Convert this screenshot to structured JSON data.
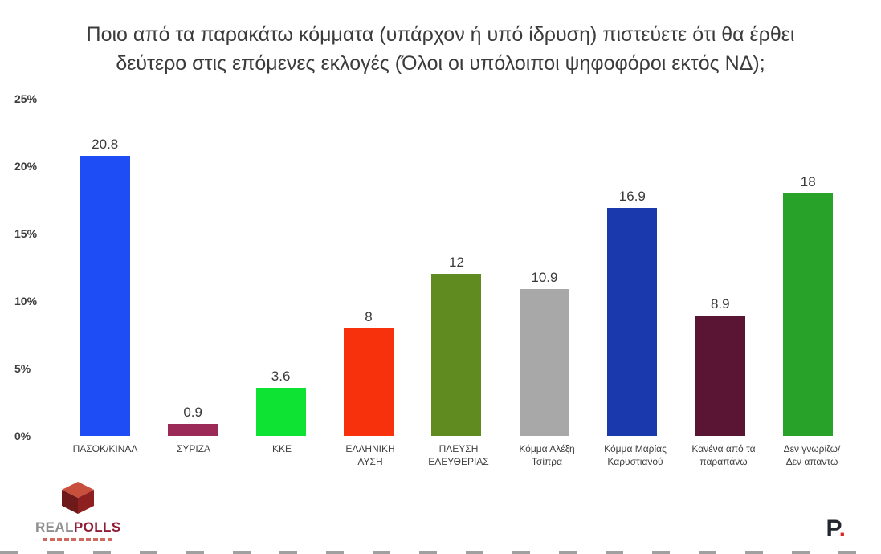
{
  "title": {
    "line1": "Ποιο από τα παρακάτω κόμματα (υπάρχον ή υπό ίδρυση) πιστεύετε ότι θα έρθει",
    "line2": "δεύτερο στις επόμενες εκλογές (Όλοι οι υπόλοιποι ψηφοφόροι εκτός ΝΔ);"
  },
  "chart_data": {
    "type": "bar",
    "title": "Ποιο από τα παρακάτω κόμματα (υπάρχον ή υπό ίδρυση) πιστεύετε ότι θα έρθει δεύτερο στις επόμενες εκλογές (Όλοι οι υπόλοιποι ψηφοφόροι εκτός ΝΔ);",
    "categories": [
      "ΠΑΣΟΚ/ΚΙΝΑΛ",
      "ΣΥΡΙΖΑ",
      "ΚΚΕ",
      "ΕΛΛΗΝΙΚΗ\nΛΥΣΗ",
      "ΠΛΕΥΣΗ\nΕΛΕΥΘΕΡΙΑΣ",
      "Κόμμα Αλέξη\nΤσίπρα",
      "Κόμμα Μαρίας\nΚαρυστιανού",
      "Κανένα από τα\nπαραπάνω",
      "Δεν γνωρίζω/\nΔεν απαντώ"
    ],
    "values": [
      20.8,
      0.9,
      3.6,
      8,
      12,
      10.9,
      16.9,
      8.9,
      18
    ],
    "value_labels": [
      "20.8",
      "0.9",
      "3.6",
      "8",
      "12",
      "10.9",
      "16.9",
      "8.9",
      "18"
    ],
    "colors": [
      "#1e4cf5",
      "#9c2a58",
      "#0ee232",
      "#f6310b",
      "#5f8b21",
      "#a8a8a8",
      "#1a39ad",
      "#5a1535",
      "#28a228"
    ],
    "xlabel": "",
    "ylabel": "",
    "ylim": [
      0,
      25
    ],
    "yticks": [
      "0%",
      "5%",
      "10%",
      "15%",
      "20%",
      "25%"
    ],
    "grid": false,
    "legend": false
  },
  "footer": {
    "real": "REAL",
    "polls": "POLLS",
    "p_letter": "P",
    "p_dot": "."
  }
}
